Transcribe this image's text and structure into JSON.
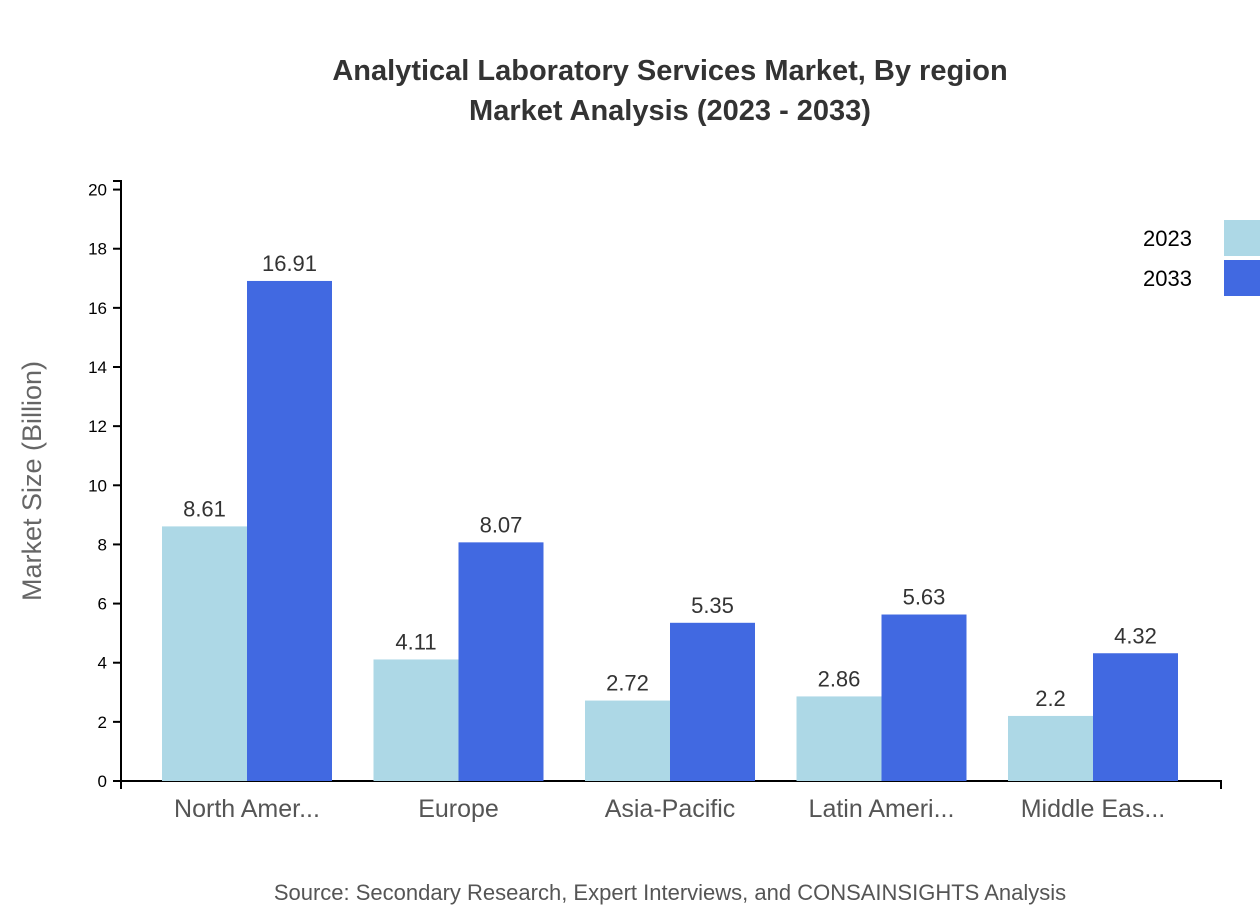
{
  "chart_data": {
    "type": "bar",
    "title": "Analytical Laboratory Services Market, By region",
    "subtitle": "Market Analysis (2023 - 2033)",
    "ylabel": "Market Size (Billion)",
    "xlabel": "",
    "categories": [
      "North Amer...",
      "Europe",
      "Asia-Pacific",
      "Latin Ameri...",
      "Middle Eas..."
    ],
    "series": [
      {
        "name": "2023",
        "color": "#add8e6",
        "values": [
          8.61,
          4.11,
          2.72,
          2.86,
          2.2
        ]
      },
      {
        "name": "2033",
        "color": "#4169e1",
        "values": [
          16.91,
          8.07,
          5.35,
          5.63,
          4.32
        ]
      }
    ],
    "ylim": [
      0,
      20.29
    ],
    "yticks": [
      0,
      2,
      4,
      6,
      8,
      10,
      12,
      14,
      16,
      18,
      20
    ],
    "grid": false,
    "legend_position": "top-right",
    "source": "Source: Secondary Research, Expert Interviews, and CONSAINSIGHTS Analysis"
  }
}
